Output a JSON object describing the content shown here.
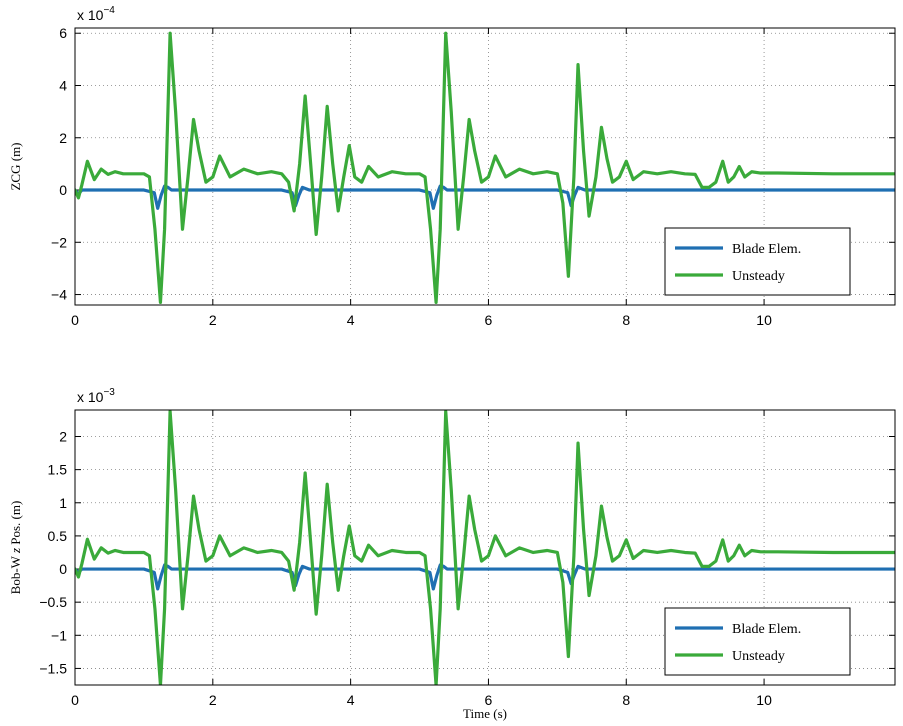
{
  "figure": {
    "xlabel": "Time (s)"
  },
  "chart_data": [
    {
      "type": "line",
      "ylabel": "ZCG (m)",
      "exponent_base": "x 10",
      "exponent_power": "−4",
      "xlim": [
        0,
        11.9
      ],
      "ylim": [
        -4.4,
        6.2
      ],
      "xticks": [
        0,
        2,
        4,
        6,
        8,
        10
      ],
      "xtick_labels": [
        "0",
        "2",
        "4",
        "6",
        "8",
        "10"
      ],
      "yticks": [
        -4,
        -2,
        0,
        2,
        4,
        6
      ],
      "ytick_labels": [
        "−4",
        "−2",
        "0",
        "2",
        "4",
        "6"
      ],
      "grid": true,
      "legend_position": "lower-right",
      "series": [
        {
          "name": "Blade Elem.",
          "color": "#1f6fb2",
          "x": [
            0,
            0.05,
            0.1,
            0.5,
            1.0,
            1.15,
            1.2,
            1.25,
            1.3,
            1.35,
            1.4,
            1.5,
            3.0,
            3.15,
            3.2,
            3.25,
            3.3,
            3.4,
            5.0,
            5.15,
            5.2,
            5.25,
            5.3,
            5.35,
            5.4,
            5.5,
            7.0,
            7.15,
            7.2,
            7.25,
            7.3,
            7.4,
            9.0,
            11.9
          ],
          "y": [
            0,
            -0.15,
            0,
            0,
            0,
            -0.1,
            -0.7,
            -0.2,
            0.15,
            0.1,
            0,
            0,
            0,
            -0.1,
            -0.6,
            -0.2,
            0.1,
            0,
            0,
            -0.1,
            -0.7,
            -0.2,
            0.15,
            0.1,
            0,
            0,
            0,
            -0.1,
            -0.6,
            -0.2,
            0.1,
            0,
            0,
            0
          ]
        },
        {
          "name": "Unsteady",
          "color": "#3aaa3a",
          "x": [
            0,
            0.05,
            0.1,
            0.18,
            0.28,
            0.38,
            0.48,
            0.58,
            0.7,
            1.0,
            1.08,
            1.16,
            1.24,
            1.3,
            1.38,
            1.46,
            1.56,
            1.64,
            1.72,
            1.8,
            1.9,
            2.0,
            2.1,
            2.25,
            2.45,
            2.65,
            2.85,
            3.0,
            3.1,
            3.18,
            3.26,
            3.34,
            3.42,
            3.5,
            3.58,
            3.66,
            3.74,
            3.82,
            3.9,
            3.98,
            4.06,
            4.16,
            4.26,
            4.4,
            4.6,
            4.8,
            5.0,
            5.08,
            5.16,
            5.24,
            5.3,
            5.38,
            5.46,
            5.56,
            5.64,
            5.72,
            5.8,
            5.9,
            6.0,
            6.1,
            6.25,
            6.45,
            6.65,
            6.85,
            7.0,
            7.08,
            7.16,
            7.24,
            7.3,
            7.38,
            7.46,
            7.56,
            7.64,
            7.72,
            7.8,
            7.9,
            8.0,
            8.1,
            8.25,
            8.45,
            8.65,
            8.85,
            9.0,
            9.1,
            9.2,
            9.3,
            9.4,
            9.48,
            9.56,
            9.64,
            9.72,
            9.82,
            9.95,
            10.2,
            11.0,
            11.9
          ],
          "y": [
            0,
            -0.3,
            0.2,
            1.1,
            0.4,
            0.8,
            0.6,
            0.7,
            0.62,
            0.62,
            0.5,
            -1.5,
            -4.3,
            -1.5,
            6.0,
            3.0,
            -1.5,
            0.5,
            2.7,
            1.5,
            0.3,
            0.5,
            1.3,
            0.5,
            0.8,
            0.62,
            0.7,
            0.62,
            0.3,
            -0.8,
            1.0,
            3.6,
            1.0,
            -1.7,
            0.5,
            3.2,
            1.0,
            -0.8,
            0.5,
            1.7,
            0.5,
            0.3,
            0.9,
            0.5,
            0.7,
            0.62,
            0.62,
            0.5,
            -1.5,
            -4.3,
            -1.5,
            6.0,
            3.0,
            -1.5,
            0.5,
            2.7,
            1.5,
            0.3,
            0.5,
            1.3,
            0.5,
            0.8,
            0.62,
            0.7,
            0.62,
            -0.5,
            -3.3,
            0.5,
            4.8,
            1.5,
            -1.0,
            0.5,
            2.4,
            1.2,
            0.3,
            0.5,
            1.1,
            0.4,
            0.7,
            0.62,
            0.7,
            0.62,
            0.6,
            0.1,
            0.1,
            0.3,
            1.1,
            0.3,
            0.5,
            0.9,
            0.5,
            0.7,
            0.65,
            0.65,
            0.62,
            0.62
          ]
        }
      ]
    },
    {
      "type": "line",
      "ylabel": "Bob-W z Pos. (m)",
      "ylabel_prefix": "Bob-W ",
      "ylabel_var": "z",
      "ylabel_suffix": " Pos. (m)",
      "exponent_base": "x 10",
      "exponent_power": "−3",
      "xlim": [
        0,
        11.9
      ],
      "ylim": [
        -1.75,
        2.4
      ],
      "xticks": [
        0,
        2,
        4,
        6,
        8,
        10
      ],
      "xtick_labels": [
        "0",
        "2",
        "4",
        "6",
        "8",
        "10"
      ],
      "yticks": [
        -1.5,
        -1,
        -0.5,
        0,
        0.5,
        1,
        1.5,
        2
      ],
      "ytick_labels": [
        "−1.5",
        "−1",
        "−0.5",
        "0",
        "0.5",
        "1",
        "1.5",
        "2"
      ],
      "grid": true,
      "legend_position": "lower-right",
      "series": [
        {
          "name": "Blade Elem.",
          "color": "#1f6fb2",
          "x": [
            0,
            0.05,
            0.1,
            0.5,
            1.0,
            1.15,
            1.2,
            1.25,
            1.3,
            1.35,
            1.4,
            1.5,
            3.0,
            3.15,
            3.2,
            3.25,
            3.3,
            3.4,
            5.0,
            5.15,
            5.2,
            5.25,
            5.3,
            5.35,
            5.4,
            5.5,
            7.0,
            7.15,
            7.2,
            7.25,
            7.3,
            7.4,
            9.0,
            11.9
          ],
          "y": [
            0,
            -0.05,
            0,
            0,
            0,
            -0.05,
            -0.3,
            -0.1,
            0.06,
            0.04,
            0,
            0,
            0,
            -0.05,
            -0.25,
            -0.08,
            0.04,
            0,
            0,
            -0.05,
            -0.3,
            -0.1,
            0.06,
            0.04,
            0,
            0,
            0,
            -0.05,
            -0.22,
            -0.08,
            0.04,
            0,
            0,
            0
          ]
        },
        {
          "name": "Unsteady",
          "color": "#3aaa3a",
          "x": [
            0,
            0.05,
            0.1,
            0.18,
            0.28,
            0.38,
            0.48,
            0.58,
            0.7,
            1.0,
            1.08,
            1.16,
            1.24,
            1.3,
            1.38,
            1.46,
            1.56,
            1.64,
            1.72,
            1.8,
            1.9,
            2.0,
            2.1,
            2.25,
            2.45,
            2.65,
            2.85,
            3.0,
            3.1,
            3.18,
            3.26,
            3.34,
            3.42,
            3.5,
            3.58,
            3.66,
            3.74,
            3.82,
            3.9,
            3.98,
            4.06,
            4.16,
            4.26,
            4.4,
            4.6,
            4.8,
            5.0,
            5.08,
            5.16,
            5.24,
            5.3,
            5.38,
            5.46,
            5.56,
            5.64,
            5.72,
            5.8,
            5.9,
            6.0,
            6.1,
            6.25,
            6.45,
            6.65,
            6.85,
            7.0,
            7.08,
            7.16,
            7.24,
            7.3,
            7.38,
            7.46,
            7.56,
            7.64,
            7.72,
            7.8,
            7.9,
            8.0,
            8.1,
            8.25,
            8.45,
            8.65,
            8.85,
            9.0,
            9.1,
            9.2,
            9.3,
            9.4,
            9.48,
            9.56,
            9.64,
            9.72,
            9.82,
            9.95,
            10.2,
            11.0,
            11.9
          ],
          "y": [
            0,
            -0.12,
            0.08,
            0.45,
            0.15,
            0.32,
            0.24,
            0.28,
            0.25,
            0.25,
            0.2,
            -0.6,
            -1.75,
            -0.6,
            2.38,
            1.2,
            -0.6,
            0.2,
            1.1,
            0.6,
            0.12,
            0.2,
            0.5,
            0.2,
            0.32,
            0.25,
            0.28,
            0.25,
            0.12,
            -0.32,
            0.4,
            1.45,
            0.4,
            -0.68,
            0.2,
            1.28,
            0.4,
            -0.32,
            0.2,
            0.65,
            0.2,
            0.12,
            0.36,
            0.2,
            0.28,
            0.25,
            0.25,
            0.2,
            -0.6,
            -1.75,
            -0.6,
            2.38,
            1.2,
            -0.6,
            0.2,
            1.1,
            0.6,
            0.12,
            0.2,
            0.5,
            0.2,
            0.32,
            0.25,
            0.28,
            0.25,
            -0.2,
            -1.32,
            0.2,
            1.9,
            0.6,
            -0.4,
            0.2,
            0.95,
            0.48,
            0.12,
            0.2,
            0.44,
            0.16,
            0.28,
            0.25,
            0.28,
            0.25,
            0.24,
            0.04,
            0.04,
            0.12,
            0.44,
            0.12,
            0.2,
            0.36,
            0.2,
            0.28,
            0.26,
            0.26,
            0.25,
            0.25
          ]
        }
      ]
    }
  ]
}
